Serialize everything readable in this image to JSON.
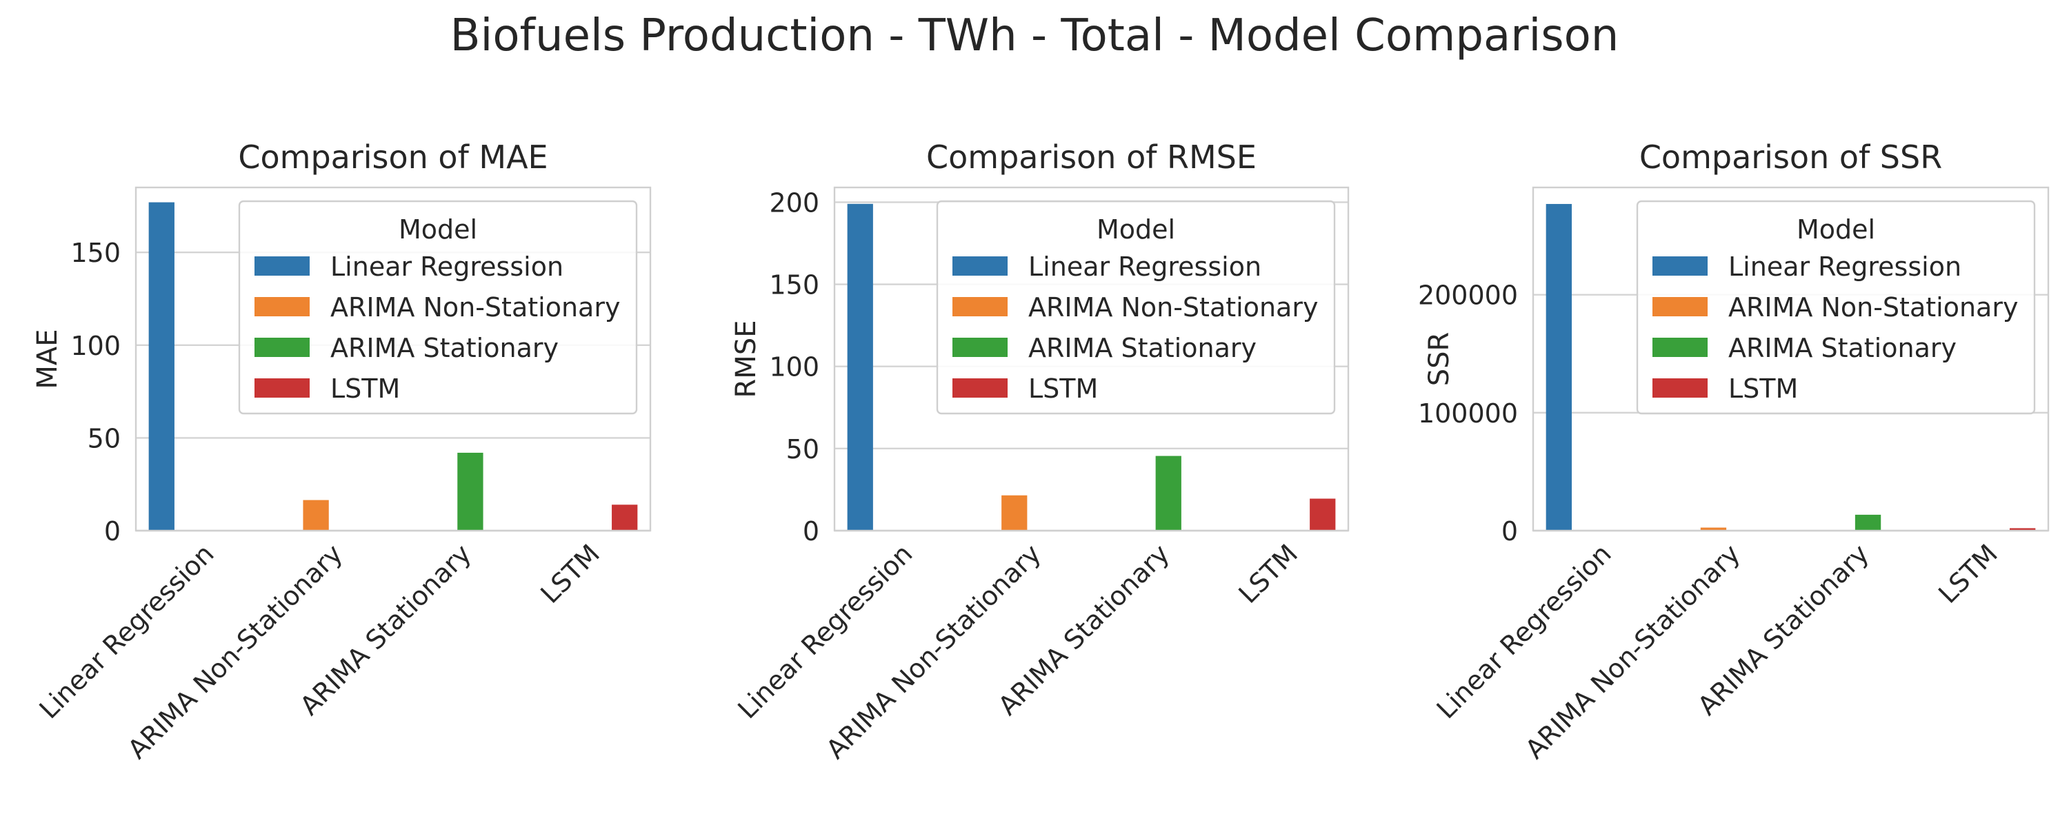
{
  "figure": {
    "title": "Biofuels Production - TWh - Total - Model Comparison"
  },
  "colors": {
    "Linear Regression": "#2f76ad",
    "ARIMA Non-Stationary": "#ee8430",
    "ARIMA Stationary": "#39a03a",
    "LSTM": "#c83434",
    "grid": "#d4d4d4",
    "frame": "#cfcfcf"
  },
  "chart_data": [
    {
      "type": "bar",
      "title": "Comparison of MAE",
      "xlabel": "",
      "ylabel": "MAE",
      "categories": [
        "Linear Regression",
        "ARIMA Non-Stationary",
        "ARIMA Stationary",
        "LSTM"
      ],
      "values": [
        177,
        16.5,
        42,
        14
      ],
      "ylim": [
        0,
        185
      ],
      "yticks": [
        0,
        50,
        100,
        150
      ],
      "grid": true,
      "legend": {
        "title": "Model",
        "placement": "upper right",
        "entries": [
          "Linear Regression",
          "ARIMA Non-Stationary",
          "ARIMA Stationary",
          "LSTM"
        ]
      }
    },
    {
      "type": "bar",
      "title": "Comparison of RMSE",
      "xlabel": "",
      "ylabel": "RMSE",
      "categories": [
        "Linear Regression",
        "ARIMA Non-Stationary",
        "ARIMA Stationary",
        "LSTM"
      ],
      "values": [
        199,
        21.5,
        45.5,
        19.5
      ],
      "ylim": [
        0,
        209
      ],
      "yticks": [
        0,
        50,
        100,
        150,
        200
      ],
      "grid": true,
      "legend": {
        "title": "Model",
        "placement": "upper right",
        "entries": [
          "Linear Regression",
          "ARIMA Non-Stationary",
          "ARIMA Stationary",
          "LSTM"
        ]
      }
    },
    {
      "type": "bar",
      "title": "Comparison of SSR",
      "xlabel": "",
      "ylabel": "SSR",
      "categories": [
        "Linear Regression",
        "ARIMA Non-Stationary",
        "ARIMA Stationary",
        "LSTM"
      ],
      "values": [
        277000,
        2600,
        13500,
        2100
      ],
      "ylim": [
        0,
        291000
      ],
      "yticks": [
        0,
        100000,
        200000
      ],
      "grid": true,
      "legend": {
        "title": "Model",
        "placement": "upper right",
        "entries": [
          "Linear Regression",
          "ARIMA Non-Stationary",
          "ARIMA Stationary",
          "LSTM"
        ]
      }
    }
  ]
}
